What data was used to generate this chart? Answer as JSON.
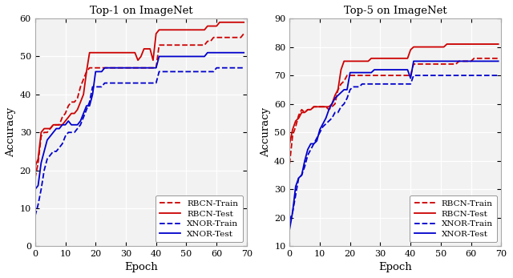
{
  "title1": "Top-1 on ImageNet",
  "title2": "Top-5 on ImageNet",
  "xlabel": "Epoch",
  "ylabel": "Accuracy",
  "xlim": [
    0,
    70
  ],
  "ylim1": [
    0,
    60
  ],
  "ylim2": [
    10,
    90
  ],
  "yticks1": [
    0,
    10,
    20,
    30,
    40,
    50,
    60
  ],
  "yticks2": [
    10,
    20,
    30,
    40,
    50,
    60,
    70,
    80,
    90
  ],
  "xticks": [
    0,
    10,
    20,
    30,
    40,
    50,
    60,
    70
  ],
  "red_color": "#cc0000",
  "blue_color": "#0000cc",
  "legend_labels": [
    "RBCN-Train",
    "RBCN-Test",
    "XNOR-Train",
    "XNOR-Test"
  ],
  "linewidth": 1.3,
  "top1_rbcn_train_x": [
    0,
    1,
    2,
    3,
    4,
    5,
    6,
    7,
    8,
    9,
    10,
    11,
    12,
    13,
    14,
    15,
    16,
    17,
    18,
    19,
    20,
    21,
    22,
    23,
    24,
    25,
    26,
    27,
    28,
    29,
    30,
    31,
    32,
    33,
    34,
    35,
    36,
    37,
    38,
    39,
    40,
    41,
    42,
    43,
    44,
    45,
    46,
    47,
    48,
    49,
    50,
    51,
    52,
    53,
    54,
    55,
    56,
    57,
    58,
    59,
    60,
    61,
    62,
    63,
    64,
    65,
    66,
    67,
    68,
    69
  ],
  "top1_rbcn_train_y": [
    18,
    22,
    29,
    30,
    30,
    31,
    32,
    32,
    32,
    34,
    35,
    37,
    38,
    38,
    39,
    42,
    44,
    46,
    47,
    47,
    47,
    47,
    47,
    47,
    47,
    47,
    47,
    47,
    47,
    47,
    47,
    47,
    47,
    47,
    47,
    47,
    47,
    47,
    47,
    47,
    47,
    53,
    53,
    53,
    53,
    53,
    53,
    53,
    53,
    53,
    53,
    53,
    53,
    53,
    53,
    53,
    53,
    54,
    54,
    55,
    55,
    55,
    55,
    55,
    55,
    55,
    55,
    55,
    55,
    56
  ],
  "top1_rbcn_test_x": [
    0,
    1,
    2,
    3,
    4,
    5,
    6,
    7,
    8,
    9,
    10,
    11,
    12,
    13,
    14,
    15,
    16,
    17,
    18,
    19,
    20,
    21,
    22,
    23,
    24,
    25,
    26,
    27,
    28,
    29,
    30,
    31,
    32,
    33,
    34,
    35,
    36,
    37,
    38,
    39,
    40,
    41,
    42,
    43,
    44,
    45,
    46,
    47,
    48,
    49,
    50,
    51,
    52,
    53,
    54,
    55,
    56,
    57,
    58,
    59,
    60,
    61,
    62,
    63,
    64,
    65,
    66,
    67,
    68,
    69
  ],
  "top1_rbcn_test_y": [
    21,
    23,
    30,
    31,
    31,
    31,
    32,
    32,
    32,
    32,
    33,
    34,
    35,
    35,
    36,
    38,
    40,
    46,
    51,
    51,
    51,
    51,
    51,
    51,
    51,
    51,
    51,
    51,
    51,
    51,
    51,
    51,
    51,
    51,
    49,
    50,
    52,
    52,
    52,
    49,
    56,
    57,
    57,
    57,
    57,
    57,
    57,
    57,
    57,
    57,
    57,
    57,
    57,
    57,
    57,
    57,
    57,
    58,
    58,
    58,
    58,
    59,
    59,
    59,
    59,
    59,
    59,
    59,
    59,
    59
  ],
  "top1_xnor_train_x": [
    0,
    1,
    2,
    3,
    4,
    5,
    6,
    7,
    8,
    9,
    10,
    11,
    12,
    13,
    14,
    15,
    16,
    17,
    18,
    19,
    20,
    21,
    22,
    23,
    24,
    25,
    26,
    27,
    28,
    29,
    30,
    31,
    32,
    33,
    34,
    35,
    36,
    37,
    38,
    39,
    40,
    41,
    42,
    43,
    44,
    45,
    46,
    47,
    48,
    49,
    50,
    51,
    52,
    53,
    54,
    55,
    56,
    57,
    58,
    59,
    60,
    61,
    62,
    63,
    64,
    65,
    66,
    67,
    68,
    69
  ],
  "top1_xnor_train_y": [
    8,
    11,
    15,
    20,
    23,
    24,
    25,
    25,
    26,
    27,
    29,
    30,
    30,
    30,
    31,
    32,
    34,
    36,
    38,
    42,
    42,
    42,
    42,
    43,
    43,
    43,
    43,
    43,
    43,
    43,
    43,
    43,
    43,
    43,
    43,
    43,
    43,
    43,
    43,
    43,
    43,
    46,
    46,
    46,
    46,
    46,
    46,
    46,
    46,
    46,
    46,
    46,
    46,
    46,
    46,
    46,
    46,
    46,
    46,
    46,
    47,
    47,
    47,
    47,
    47,
    47,
    47,
    47,
    47,
    47
  ],
  "top1_xnor_test_x": [
    0,
    1,
    2,
    3,
    4,
    5,
    6,
    7,
    8,
    9,
    10,
    11,
    12,
    13,
    14,
    15,
    16,
    17,
    18,
    19,
    20,
    21,
    22,
    23,
    24,
    25,
    26,
    27,
    28,
    29,
    30,
    31,
    32,
    33,
    34,
    35,
    36,
    37,
    38,
    39,
    40,
    41,
    42,
    43,
    44,
    45,
    46,
    47,
    48,
    49,
    50,
    51,
    52,
    53,
    54,
    55,
    56,
    57,
    58,
    59,
    60,
    61,
    62,
    63,
    64,
    65,
    66,
    67,
    68,
    69
  ],
  "top1_xnor_test_y": [
    15,
    16,
    22,
    25,
    28,
    29,
    30,
    31,
    31,
    32,
    32,
    33,
    32,
    32,
    32,
    33,
    35,
    37,
    37,
    40,
    46,
    46,
    46,
    47,
    47,
    47,
    47,
    47,
    47,
    47,
    47,
    47,
    47,
    47,
    47,
    47,
    47,
    47,
    47,
    47,
    47,
    50,
    50,
    50,
    50,
    50,
    50,
    50,
    50,
    50,
    50,
    50,
    50,
    50,
    50,
    50,
    50,
    51,
    51,
    51,
    51,
    51,
    51,
    51,
    51,
    51,
    51,
    51,
    51,
    51
  ],
  "top5_rbcn_train_x": [
    0,
    1,
    2,
    3,
    4,
    5,
    6,
    7,
    8,
    9,
    10,
    11,
    12,
    13,
    14,
    15,
    16,
    17,
    18,
    19,
    20,
    21,
    22,
    23,
    24,
    25,
    26,
    27,
    28,
    29,
    30,
    31,
    32,
    33,
    34,
    35,
    36,
    37,
    38,
    39,
    40,
    41,
    42,
    43,
    44,
    45,
    46,
    47,
    48,
    49,
    50,
    51,
    52,
    53,
    54,
    55,
    56,
    57,
    58,
    59,
    60,
    61,
    62,
    63,
    64,
    65,
    66,
    67,
    68,
    69
  ],
  "top5_rbcn_train_y": [
    39,
    49,
    52,
    56,
    58,
    57,
    58,
    58,
    59,
    59,
    59,
    59,
    59,
    58,
    59,
    60,
    65,
    67,
    68,
    70,
    70,
    70,
    70,
    70,
    70,
    70,
    70,
    70,
    70,
    70,
    70,
    70,
    70,
    70,
    70,
    70,
    70,
    70,
    70,
    70,
    70,
    74,
    74,
    74,
    74,
    74,
    74,
    74,
    74,
    74,
    74,
    74,
    74,
    74,
    74,
    74,
    75,
    75,
    75,
    75,
    75,
    76,
    76,
    76,
    76,
    76,
    76,
    76,
    76,
    76
  ],
  "top5_rbcn_test_x": [
    0,
    1,
    2,
    3,
    4,
    5,
    6,
    7,
    8,
    9,
    10,
    11,
    12,
    13,
    14,
    15,
    16,
    17,
    18,
    19,
    20,
    21,
    22,
    23,
    24,
    25,
    26,
    27,
    28,
    29,
    30,
    31,
    32,
    33,
    34,
    35,
    36,
    37,
    38,
    39,
    40,
    41,
    42,
    43,
    44,
    45,
    46,
    47,
    48,
    49,
    50,
    51,
    52,
    53,
    54,
    55,
    56,
    57,
    58,
    59,
    60,
    61,
    62,
    63,
    64,
    65,
    66,
    67,
    68,
    69
  ],
  "top5_rbcn_test_y": [
    46,
    51,
    54,
    55,
    57,
    57,
    58,
    58,
    59,
    59,
    59,
    59,
    59,
    59,
    60,
    63,
    65,
    72,
    75,
    75,
    75,
    75,
    75,
    75,
    75,
    75,
    75,
    76,
    76,
    76,
    76,
    76,
    76,
    76,
    76,
    76,
    76,
    76,
    76,
    76,
    79,
    80,
    80,
    80,
    80,
    80,
    80,
    80,
    80,
    80,
    80,
    80,
    81,
    81,
    81,
    81,
    81,
    81,
    81,
    81,
    81,
    81,
    81,
    81,
    81,
    81,
    81,
    81,
    81,
    81
  ],
  "top5_xnor_train_x": [
    0,
    1,
    2,
    3,
    4,
    5,
    6,
    7,
    8,
    9,
    10,
    11,
    12,
    13,
    14,
    15,
    16,
    17,
    18,
    19,
    20,
    21,
    22,
    23,
    24,
    25,
    26,
    27,
    28,
    29,
    30,
    31,
    32,
    33,
    34,
    35,
    36,
    37,
    38,
    39,
    40,
    41,
    42,
    43,
    44,
    45,
    46,
    47,
    48,
    49,
    50,
    51,
    52,
    53,
    54,
    55,
    56,
    57,
    58,
    59,
    60,
    61,
    62,
    63,
    64,
    65,
    66,
    67,
    68,
    69
  ],
  "top5_xnor_train_y": [
    19,
    22,
    28,
    34,
    35,
    38,
    42,
    44,
    46,
    48,
    50,
    52,
    53,
    54,
    55,
    57,
    57,
    59,
    60,
    62,
    65,
    66,
    66,
    66,
    67,
    67,
    67,
    67,
    67,
    67,
    67,
    67,
    67,
    67,
    67,
    67,
    67,
    67,
    67,
    67,
    67,
    70,
    70,
    70,
    70,
    70,
    70,
    70,
    70,
    70,
    70,
    70,
    70,
    70,
    70,
    70,
    70,
    70,
    70,
    70,
    70,
    70,
    70,
    70,
    70,
    70,
    70,
    70,
    70,
    70
  ],
  "top5_xnor_test_x": [
    0,
    1,
    2,
    3,
    4,
    5,
    6,
    7,
    8,
    9,
    10,
    11,
    12,
    13,
    14,
    15,
    16,
    17,
    18,
    19,
    20,
    21,
    22,
    23,
    24,
    25,
    26,
    27,
    28,
    29,
    30,
    31,
    32,
    33,
    34,
    35,
    36,
    37,
    38,
    39,
    40,
    41,
    42,
    43,
    44,
    45,
    46,
    47,
    48,
    49,
    50,
    51,
    52,
    53,
    54,
    55,
    56,
    57,
    58,
    59,
    60,
    61,
    62,
    63,
    64,
    65,
    66,
    67,
    68,
    69
  ],
  "top5_xnor_test_y": [
    16,
    22,
    31,
    34,
    35,
    40,
    44,
    46,
    46,
    47,
    51,
    53,
    55,
    58,
    60,
    62,
    63,
    64,
    65,
    65,
    71,
    71,
    71,
    71,
    71,
    71,
    71,
    71,
    72,
    72,
    72,
    72,
    72,
    72,
    72,
    72,
    72,
    72,
    72,
    72,
    69,
    75,
    75,
    75,
    75,
    75,
    75,
    75,
    75,
    75,
    75,
    75,
    75,
    75,
    75,
    75,
    75,
    75,
    75,
    75,
    75,
    75,
    75,
    75,
    75,
    75,
    75,
    75,
    75,
    75
  ],
  "bg_color": "#f2f2f2",
  "grid_color": "#ffffff",
  "border_color": "#aaaaaa",
  "title_fontsize": 9.5,
  "label_fontsize": 9.5,
  "tick_fontsize": 8,
  "legend_fontsize": 7.5
}
